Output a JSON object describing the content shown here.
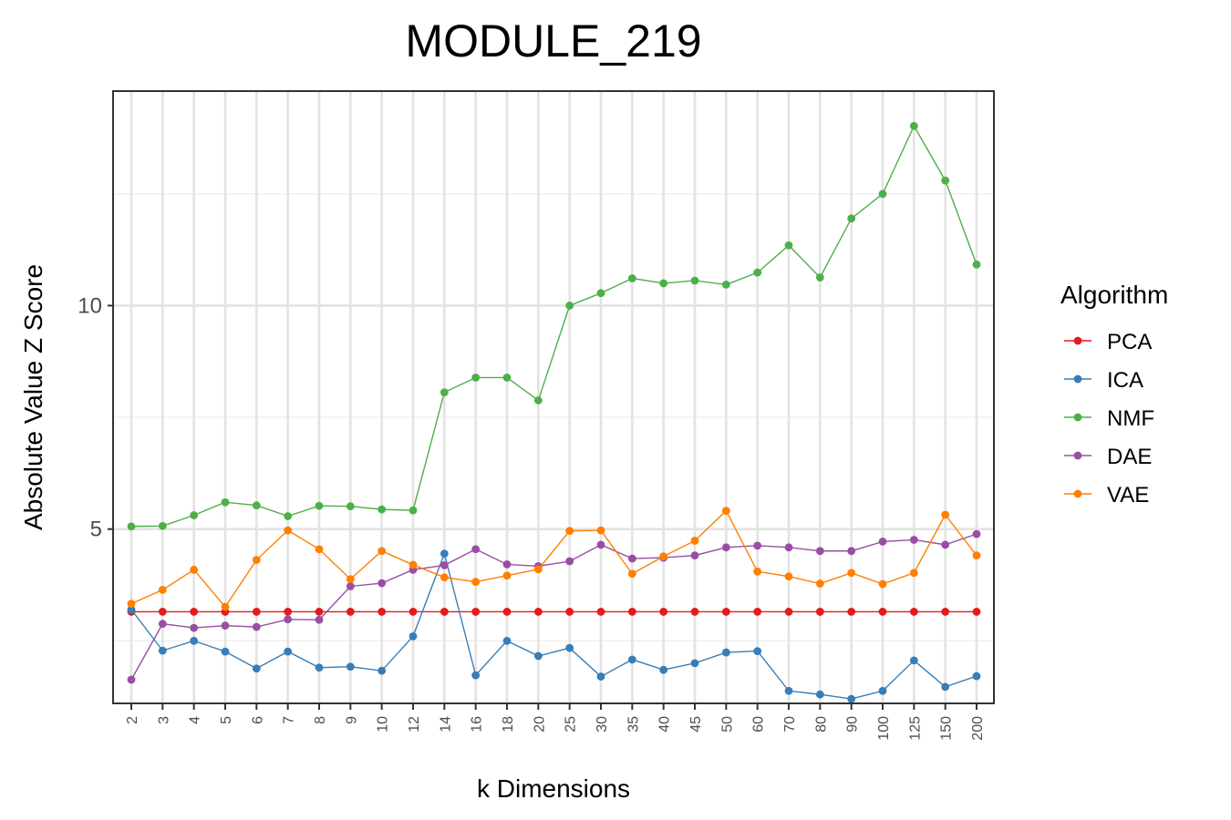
{
  "chart_data": {
    "type": "line",
    "title": "MODULE_219",
    "xlabel": "k Dimensions",
    "ylabel": "Absolute Value Z Score",
    "legend_title": "Algorithm",
    "legend_position": "right",
    "grid": true,
    "ylim": [
      1.1,
      14.8
    ],
    "yticks": [
      5,
      10
    ],
    "yticks_labels": [
      "5",
      "10"
    ],
    "categories": [
      "2",
      "3",
      "4",
      "5",
      "6",
      "7",
      "8",
      "9",
      "10",
      "12",
      "14",
      "16",
      "18",
      "20",
      "25",
      "30",
      "35",
      "40",
      "45",
      "50",
      "60",
      "70",
      "80",
      "90",
      "100",
      "125",
      "150",
      "200"
    ],
    "series": [
      {
        "name": "PCA",
        "color": "#e41a1c",
        "values": [
          3.15,
          3.15,
          3.15,
          3.15,
          3.15,
          3.15,
          3.15,
          3.15,
          3.15,
          3.15,
          3.15,
          3.15,
          3.15,
          3.15,
          3.15,
          3.15,
          3.15,
          3.15,
          3.15,
          3.15,
          3.15,
          3.15,
          3.15,
          3.15,
          3.15,
          3.15,
          3.15,
          3.15
        ]
      },
      {
        "name": "ICA",
        "color": "#377eb8",
        "values": [
          3.2,
          2.28,
          2.5,
          2.26,
          1.88,
          2.26,
          1.9,
          1.92,
          1.83,
          2.6,
          4.45,
          1.73,
          2.5,
          2.16,
          2.34,
          1.7,
          2.08,
          1.85,
          2.0,
          2.24,
          2.27,
          1.38,
          1.3,
          1.2,
          1.38,
          2.06,
          1.47,
          1.71
        ]
      },
      {
        "name": "NMF",
        "color": "#4daf4a",
        "values": [
          5.06,
          5.07,
          5.31,
          5.6,
          5.53,
          5.29,
          5.52,
          5.51,
          5.44,
          5.42,
          8.06,
          8.39,
          8.39,
          7.88,
          10.0,
          10.28,
          10.61,
          10.5,
          10.56,
          10.47,
          10.74,
          11.35,
          10.63,
          11.95,
          12.5,
          14.02,
          12.8,
          10.92
        ]
      },
      {
        "name": "DAE",
        "color": "#984ea3",
        "values": [
          1.63,
          2.88,
          2.79,
          2.84,
          2.81,
          2.98,
          2.97,
          3.72,
          3.79,
          4.09,
          4.19,
          4.55,
          4.21,
          4.17,
          4.28,
          4.65,
          4.34,
          4.36,
          4.41,
          4.59,
          4.63,
          4.59,
          4.51,
          4.51,
          4.72,
          4.76,
          4.65,
          4.89
        ]
      },
      {
        "name": "VAE",
        "color": "#ff7f00",
        "values": [
          3.33,
          3.64,
          4.09,
          3.26,
          4.31,
          4.97,
          4.55,
          3.88,
          4.51,
          4.2,
          3.92,
          3.82,
          3.96,
          4.1,
          4.96,
          4.97,
          4.0,
          4.39,
          4.74,
          5.41,
          4.05,
          3.94,
          3.78,
          4.02,
          3.77,
          4.02,
          5.32,
          4.41
        ]
      }
    ]
  }
}
